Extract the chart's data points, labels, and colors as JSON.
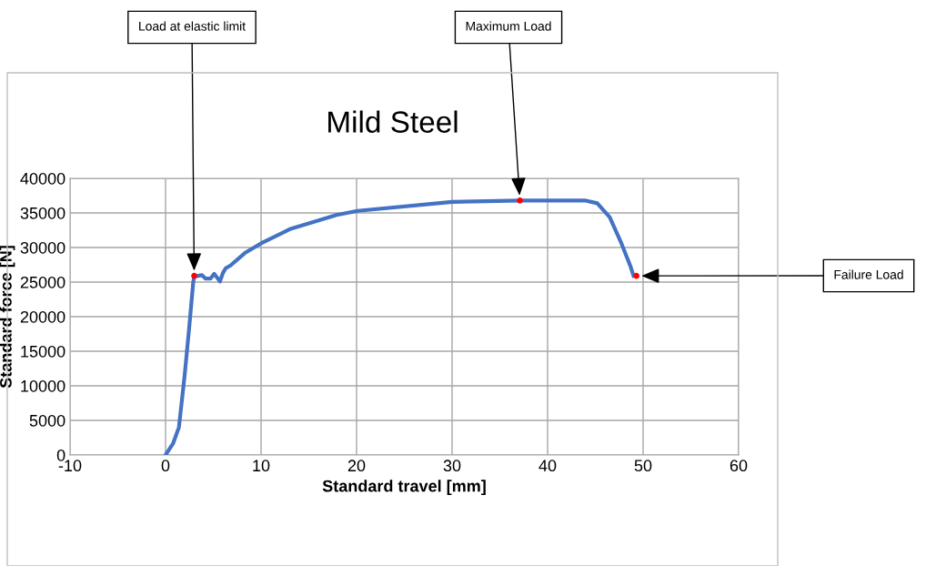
{
  "chart_data": {
    "type": "line",
    "title": "Mild Steel",
    "xlabel": "Standard travel [mm]",
    "ylabel": "Standard force [N]",
    "xlim": [
      -10,
      60
    ],
    "xticks": [
      -10,
      0,
      10,
      20,
      30,
      40,
      50,
      60
    ],
    "ylim": [
      0,
      40000
    ],
    "yticks": [
      0,
      5000,
      10000,
      15000,
      20000,
      25000,
      30000,
      35000,
      40000
    ],
    "grid": true,
    "marker": "none",
    "line_style": "solid",
    "series": [
      {
        "color": "#4472c4",
        "x": [
          0,
          0.8,
          1.4,
          2.0,
          2.5,
          2.9,
          3.0,
          3.8,
          4.2,
          4.7,
          5.1,
          5.7,
          6.0,
          6.3,
          6.8,
          8.3,
          10,
          13.1,
          17.9,
          20.1,
          30,
          37.1,
          43.9,
          45.2,
          46.5,
          47.7,
          48.7,
          49.0
        ],
        "values": [
          0,
          1700,
          4000,
          11500,
          18800,
          25000,
          25800,
          26000,
          25500,
          25500,
          26200,
          25100,
          26300,
          27000,
          27400,
          29200,
          30600,
          32700,
          34700,
          35300,
          36600,
          36800,
          36800,
          36400,
          34400,
          30700,
          27200,
          25900
        ]
      },
      {
        "type": "scatter",
        "color": "#ff0000",
        "x": [
          3.0,
          37.1,
          49.3
        ],
        "values": [
          25900,
          36800,
          25900
        ]
      }
    ],
    "annotations": [
      {
        "text": "Load at elastic limit",
        "x": 3.0,
        "y": 25900
      },
      {
        "text": "Maximum Load",
        "x": 37.1,
        "y": 36800
      },
      {
        "text": "Failure Load",
        "x": 49.3,
        "y": 25900
      }
    ]
  }
}
